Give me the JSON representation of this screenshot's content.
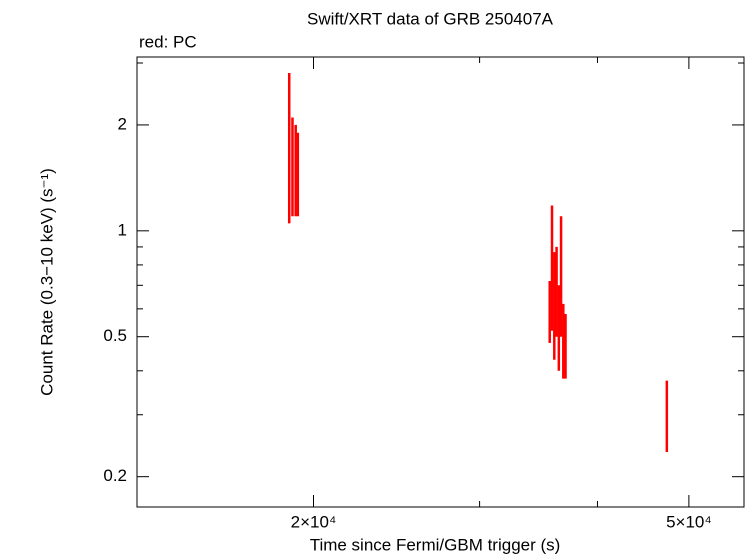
{
  "chart_data": {
    "type": "errorbar",
    "title": "Swift/XRT data of GRB 250407A",
    "subtitle": "red: PC",
    "xlabel": "Time since Fermi/GBM trigger (s)",
    "ylabel": "Count Rate (0.3−10 keV) (s⁻¹)",
    "xscale": "log",
    "yscale": "log",
    "xlim": [
      13000,
      57200
    ],
    "ylim": [
      0.164,
      3.12
    ],
    "xticks": [
      {
        "value": 20000,
        "label": "2×10⁴"
      },
      {
        "value": 50000,
        "label": "5×10⁴"
      }
    ],
    "x_minor_ticks": [
      30000,
      40000
    ],
    "yticks": [
      0.2,
      0.5,
      1,
      2
    ],
    "y_minor_ticks": [
      0.3,
      0.4,
      0.6,
      0.7,
      0.8,
      0.9,
      3
    ],
    "series": [
      {
        "name": "PC",
        "color": "#ff0000",
        "x": [
          18850,
          19000,
          19150,
          19250,
          35600,
          35800,
          36000,
          36200,
          36400,
          36600,
          36800,
          37000,
          47380
        ],
        "values": [
          1.93,
          1.6,
          1.55,
          1.5,
          0.6,
          0.85,
          0.65,
          0.7,
          0.55,
          0.8,
          0.5,
          0.48,
          0.305
        ],
        "errors": [
          0.88,
          0.5,
          0.45,
          0.4,
          0.12,
          0.33,
          0.22,
          0.2,
          0.15,
          0.3,
          0.12,
          0.1,
          0.07
        ]
      }
    ]
  }
}
